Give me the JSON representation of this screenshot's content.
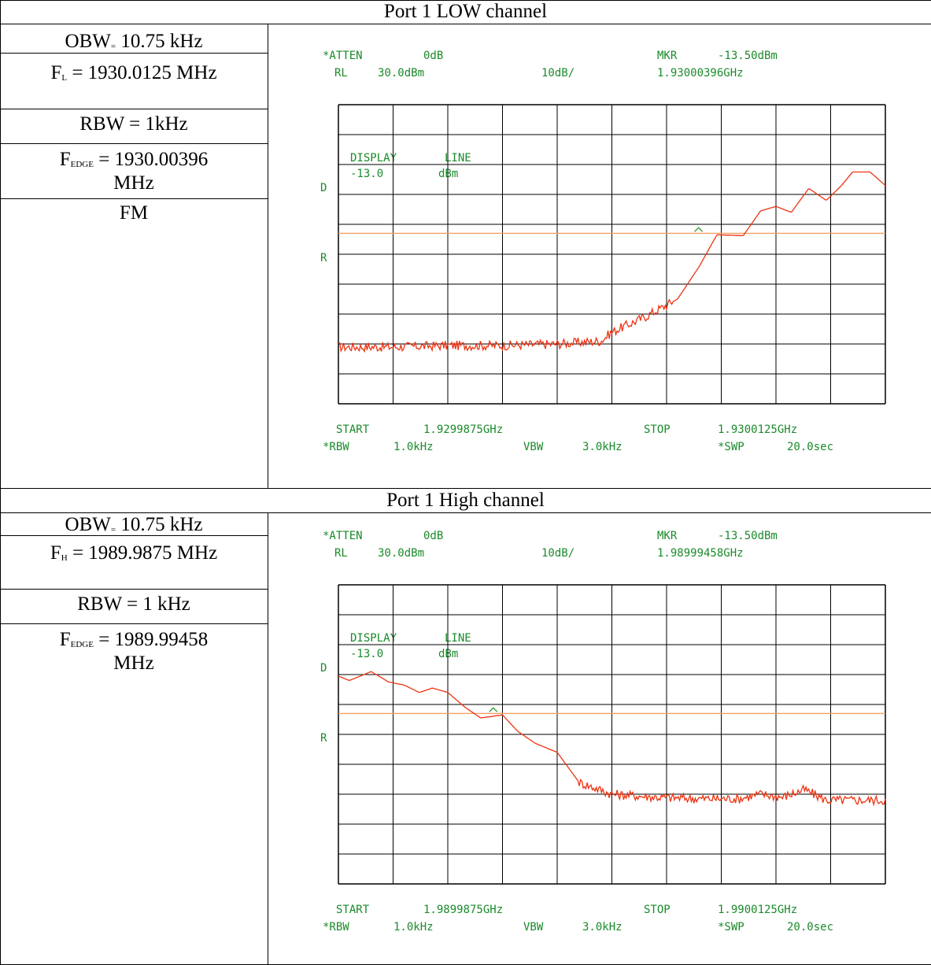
{
  "colors": {
    "grid": "#000000",
    "trace": "#ee3311",
    "limit_line": "#f4a060",
    "marker": "#2a9a2a",
    "readout_text": "#1a8a2a"
  },
  "panels": [
    {
      "title": "Port 1 LOW channel",
      "info": {
        "obw_label": "OBW",
        "obw_sub": "=",
        "obw_value": "10.75 kHz",
        "f_label": "F",
        "f_sub": "L",
        "f_value": "= 1930.0125 MHz",
        "rbw": "RBW = 1kHz",
        "edge_label": "F",
        "edge_sub": "EDGE",
        "edge_value": "= 1930.00396",
        "edge_unit": "MHz",
        "mod": "FM"
      },
      "spectrum": {
        "atten_label": "*ATTEN",
        "atten_value": "0dB",
        "rl_label": "RL",
        "rl_value": "30.0dBm",
        "scale": "10dB/",
        "mkr_label": "MKR",
        "mkr_level": "-13.50dBm",
        "mkr_freq": "1.93000396GHz",
        "display_line_label": "DISPLAY",
        "display_line_mode": "LINE",
        "display_line_value": "-13.0",
        "display_line_unit": "dBm",
        "side_d": "D",
        "side_r": "R",
        "start_label": "START",
        "start_value": "1.9299875GHz",
        "stop_label": "STOP",
        "stop_value": "1.9300125GHz",
        "rbw_label": "*RBW",
        "rbw_value": "1.0kHz",
        "vbw_label": "VBW",
        "vbw_value": "3.0kHz",
        "swp_label": "*SWP",
        "swp_value": "20.0sec"
      },
      "chart_data": {
        "type": "line",
        "xlim": [
          1929.9875,
          1930.0125
        ],
        "ylim": [
          -70,
          30
        ],
        "x_unit": "MHz",
        "y_unit": "dBm",
        "grid": true,
        "limit_line": -13.0,
        "marker": {
          "x": 1930.00396,
          "y": -13.5
        },
        "trace": {
          "x": [
            1929.9875,
            1929.99,
            1929.9925,
            1929.995,
            1929.9975,
            1929.9995,
            1930.0,
            1930.0015,
            1930.0025,
            1930.003,
            1930.004,
            1930.0048,
            1930.006,
            1930.0068,
            1930.0075,
            1930.0082,
            1930.009,
            1930.0098,
            1930.0105,
            1930.011,
            1930.0118,
            1930.0125
          ],
          "y": [
            -51,
            -51,
            -50.5,
            -50.5,
            -50,
            -49,
            -46,
            -41,
            -37,
            -35,
            -24,
            -13.5,
            -13.8,
            -5.5,
            -4,
            -6,
            2,
            -2,
            3,
            7.5,
            7.5,
            3
          ]
        }
      }
    },
    {
      "title": "Port 1 High channel",
      "info": {
        "obw_label": "OBW",
        "obw_sub": "=",
        "obw_value": "10.75 kHz",
        "f_label": "F",
        "f_sub": "H",
        "f_value": "= 1989.9875 MHz",
        "rbw": "RBW = 1 kHz",
        "edge_label": "F",
        "edge_sub": "EDGE",
        "edge_value": "= 1989.99458",
        "edge_unit": "MHz",
        "mod": ""
      },
      "spectrum": {
        "atten_label": "*ATTEN",
        "atten_value": "0dB",
        "rl_label": "RL",
        "rl_value": "30.0dBm",
        "scale": "10dB/",
        "mkr_label": "MKR",
        "mkr_level": "-13.50dBm",
        "mkr_freq": "1.98999458GHz",
        "display_line_label": "DISPLAY",
        "display_line_mode": "LINE",
        "display_line_value": "-13.0",
        "display_line_unit": "dBm",
        "side_d": "D",
        "side_r": "R",
        "start_label": "START",
        "start_value": "1.9899875GHz",
        "stop_label": "STOP",
        "stop_value": "1.9900125GHz",
        "rbw_label": "*RBW",
        "rbw_value": "1.0kHz",
        "vbw_label": "VBW",
        "vbw_value": "3.0kHz",
        "swp_label": "*SWP",
        "swp_value": "20.0sec"
      },
      "chart_data": {
        "type": "line",
        "xlim": [
          1989.9875,
          1990.0125
        ],
        "ylim": [
          -70,
          30
        ],
        "x_unit": "MHz",
        "y_unit": "dBm",
        "grid": true,
        "limit_line": -13.0,
        "marker": {
          "x": 1989.99458,
          "y": -13.5
        },
        "trace": {
          "x": [
            1989.9875,
            1989.988,
            1989.989,
            1989.9898,
            1989.9905,
            1989.9912,
            1989.9918,
            1989.9925,
            1989.9933,
            1989.994,
            1989.995,
            1989.9957,
            1989.9965,
            1989.9975,
            1989.9985,
            1990.0,
            1990.002,
            1990.004,
            1990.0058,
            1990.0068,
            1990.0078,
            1990.0088,
            1990.0098,
            1990.0115,
            1990.0125
          ],
          "y": [
            -0.5,
            -2,
            1,
            -2.5,
            -3.5,
            -6,
            -4.5,
            -6,
            -11,
            -14.5,
            -13.5,
            -19,
            -23,
            -26,
            -36,
            -40,
            -41,
            -41.5,
            -41.5,
            -40,
            -41,
            -38.5,
            -42,
            -42,
            -42
          ]
        }
      }
    }
  ]
}
